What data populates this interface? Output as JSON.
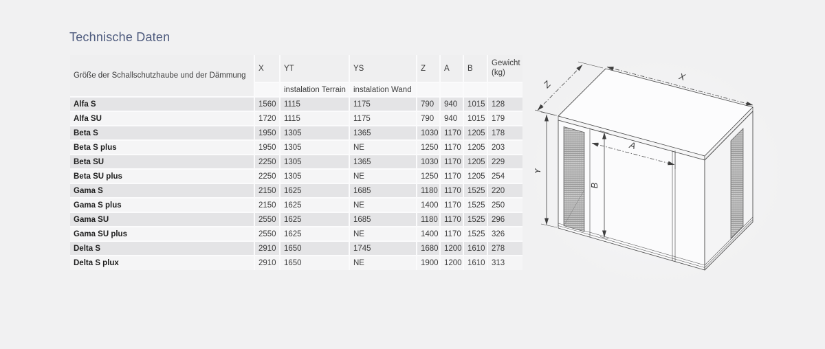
{
  "page": {
    "title": "Technische Daten",
    "title_color": "#4e5b7e"
  },
  "table": {
    "row_header": "Größe der Schallschutzhaube und der Dämmung",
    "columns": [
      {
        "label": "X"
      },
      {
        "label": "YT",
        "sub": "instalation Terrain"
      },
      {
        "label": "YS",
        "sub": "instalation Wand"
      },
      {
        "label": "Z"
      },
      {
        "label": "A"
      },
      {
        "label": "B"
      },
      {
        "label": "Gewicht (kg)"
      }
    ],
    "rows": [
      {
        "name": "Alfa S",
        "values": [
          "1560",
          "1115",
          "1175",
          "790",
          "940",
          "1015",
          "128"
        ]
      },
      {
        "name": "Alfa SU",
        "values": [
          "1720",
          "1115",
          "1175",
          "790",
          "940",
          "1015",
          "179"
        ]
      },
      {
        "name": "Beta S",
        "values": [
          "1950",
          "1305",
          "1365",
          "1030",
          "1170",
          "1205",
          "178"
        ]
      },
      {
        "name": "Beta S plus",
        "values": [
          "1950",
          "1305",
          "NE",
          "1250",
          "1170",
          "1205",
          "203"
        ]
      },
      {
        "name": "Beta SU",
        "values": [
          "2250",
          "1305",
          "1365",
          "1030",
          "1170",
          "1205",
          "229"
        ]
      },
      {
        "name": "Beta SU plus",
        "values": [
          "2250",
          "1305",
          "NE",
          "1250",
          "1170",
          "1205",
          "254"
        ]
      },
      {
        "name": "Gama S",
        "values": [
          "2150",
          "1625",
          "1685",
          "1180",
          "1170",
          "1525",
          "220"
        ]
      },
      {
        "name": "Gama S plus",
        "values": [
          "2150",
          "1625",
          "NE",
          "1400",
          "1170",
          "1525",
          "250"
        ]
      },
      {
        "name": "Gama SU",
        "values": [
          "2550",
          "1625",
          "1685",
          "1180",
          "1170",
          "1525",
          "296"
        ]
      },
      {
        "name": "Gama SU plus",
        "values": [
          "2550",
          "1625",
          "NE",
          "1400",
          "1170",
          "1525",
          "326"
        ]
      },
      {
        "name": "Delta S",
        "values": [
          "2910",
          "1650",
          "1745",
          "1680",
          "1200",
          "1610",
          "278"
        ]
      },
      {
        "name": "Delta S plux",
        "values": [
          "2910",
          "1650",
          "NE",
          "1900",
          "1200",
          "1610",
          "313"
        ]
      }
    ]
  },
  "diagram": {
    "labels": {
      "x": "X",
      "y": "Y",
      "z": "Z",
      "a": "A",
      "b": "B"
    }
  }
}
